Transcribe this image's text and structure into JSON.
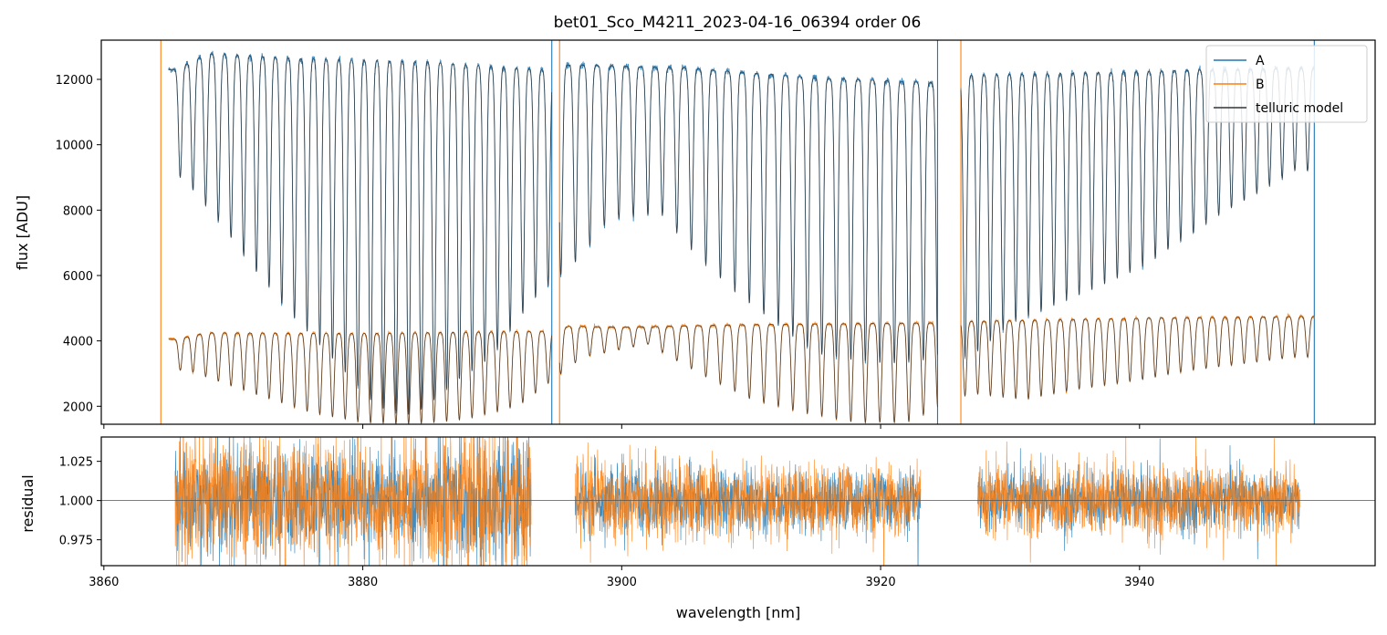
{
  "chart_data": [
    {
      "type": "line",
      "panel": "top",
      "title": "bet01_Sco_M4211_2023-04-16_06394  order 06",
      "ylabel": "flux [ADU]",
      "xlabel": "",
      "xlim": [
        3859.8,
        3958.2
      ],
      "ylim": [
        1450,
        13200
      ],
      "yticks": [
        2000,
        4000,
        6000,
        8000,
        10000,
        12000
      ],
      "yticklabels": [
        "2000",
        "4000",
        "6000",
        "8000",
        "10000",
        "12000"
      ],
      "xticks": [
        3860,
        3880,
        3900,
        3920,
        3940
      ],
      "grid": false,
      "legend": {
        "location": "upper right",
        "entries": [
          {
            "label": "A",
            "color": "#1f77b4"
          },
          {
            "label": "B",
            "color": "#ff7f0e"
          },
          {
            "label": "telluric model",
            "color": "#333333"
          }
        ]
      },
      "gap_edges_nm": [
        3864.4,
        3894.6,
        3895.2,
        3924.4,
        3926.2,
        3953.5
      ],
      "series": [
        {
          "name": "A",
          "color": "#1f77b4",
          "segments": [
            [
              3865.0,
              3894.6
            ],
            [
              3895.2,
              3924.4
            ],
            [
              3926.2,
              3953.5
            ]
          ],
          "continuum": [
            [
              3865.5,
              12300
            ],
            [
              3868,
              12800
            ],
            [
              3875,
              12650
            ],
            [
              3885,
              12550
            ],
            [
              3894,
              12300
            ],
            [
              3896,
              12450
            ],
            [
              3905,
              12350
            ],
            [
              3915,
              12050
            ],
            [
              3924,
              11900
            ],
            [
              3927,
              12150
            ],
            [
              3935,
              12200
            ],
            [
              3945,
              12300
            ],
            [
              3953,
              12350
            ]
          ],
          "line_depths": [
            [
              3866.2,
              9000
            ],
            [
              3867.5,
              8300
            ],
            [
              3869,
              7600
            ],
            [
              3871,
              6500
            ],
            [
              3874,
              5000
            ],
            [
              3878,
              3300
            ],
            [
              3881,
              2000
            ],
            [
              3884,
              1700
            ],
            [
              3887,
              2700
            ],
            [
              3890,
              3500
            ],
            [
              3893,
              5200
            ],
            [
              3897,
              6600
            ],
            [
              3899,
              7700
            ],
            [
              3903,
              7900
            ],
            [
              3906,
              6500
            ],
            [
              3909,
              5400
            ],
            [
              3912,
              4500
            ],
            [
              3915,
              3600
            ],
            [
              3918,
              3400
            ],
            [
              3921,
              3300
            ],
            [
              3923.5,
              3400
            ],
            [
              3927,
              3500
            ],
            [
              3930,
              4500
            ],
            [
              3933,
              5000
            ],
            [
              3936,
              5500
            ],
            [
              3940,
              6200
            ],
            [
              3943,
              7000
            ],
            [
              3946,
              7800
            ],
            [
              3949,
              8500
            ],
            [
              3952,
              9200
            ]
          ]
        },
        {
          "name": "B",
          "color": "#ff7f0e",
          "segments": [
            [
              3865.0,
              3894.6
            ],
            [
              3895.2,
              3924.4
            ],
            [
              3926.2,
              3953.5
            ]
          ],
          "continuum": [
            [
              3865.5,
              4050
            ],
            [
              3868,
              4250
            ],
            [
              3880,
              4230
            ],
            [
              3894,
              4300
            ],
            [
              3896,
              4450
            ],
            [
              3900,
              4420
            ],
            [
              3910,
              4500
            ],
            [
              3924,
              4550
            ],
            [
              3927,
              4600
            ],
            [
              3940,
              4700
            ],
            [
              3953,
              4750
            ]
          ],
          "line_depths": [
            [
              3866.5,
              3100
            ],
            [
              3870,
              2600
            ],
            [
              3873,
              2200
            ],
            [
              3876,
              1800
            ],
            [
              3880,
              1500
            ],
            [
              3884,
              1450
            ],
            [
              3888,
              1600
            ],
            [
              3892,
              2000
            ],
            [
              3897,
              3500
            ],
            [
              3902,
              3900
            ],
            [
              3906,
              3000
            ],
            [
              3910,
              2200
            ],
            [
              3914,
              1800
            ],
            [
              3918,
              1500
            ],
            [
              3922,
              1500
            ],
            [
              3927,
              2400
            ],
            [
              3931,
              2200
            ],
            [
              3935,
              2500
            ],
            [
              3940,
              2800
            ],
            [
              3944,
              3100
            ],
            [
              3948,
              3300
            ],
            [
              3952,
              3500
            ]
          ]
        },
        {
          "name": "telluric model",
          "color": "#333333"
        }
      ]
    },
    {
      "type": "line",
      "panel": "bottom",
      "ylabel": "residual",
      "xlabel": "wavelength [nm]",
      "xlim": [
        3859.8,
        3958.2
      ],
      "ylim": [
        0.9585,
        1.0405
      ],
      "yticks": [
        0.975,
        1.0,
        1.025
      ],
      "yticklabels": [
        "0.975",
        "1.000",
        "1.025"
      ],
      "xticks": [
        3860,
        3880,
        3900,
        3920,
        3940
      ],
      "xticklabels": [
        "3860",
        "3880",
        "3900",
        "3920",
        "3940"
      ],
      "reference_line": 1.0,
      "segments": [
        [
          3865.5,
          3893.0
        ],
        [
          3896.4,
          3923.1
        ],
        [
          3927.5,
          3952.4
        ]
      ],
      "noise_sigma": [
        [
          3865.5,
          0.02
        ],
        [
          3880,
          0.018
        ],
        [
          3893,
          0.022
        ],
        [
          3896.4,
          0.012
        ],
        [
          3923.1,
          0.01
        ],
        [
          3927.5,
          0.011
        ],
        [
          3952.4,
          0.01
        ]
      ],
      "series": [
        {
          "name": "A",
          "color": "#1f77b4"
        },
        {
          "name": "B",
          "color": "#ff7f0e"
        }
      ]
    }
  ]
}
